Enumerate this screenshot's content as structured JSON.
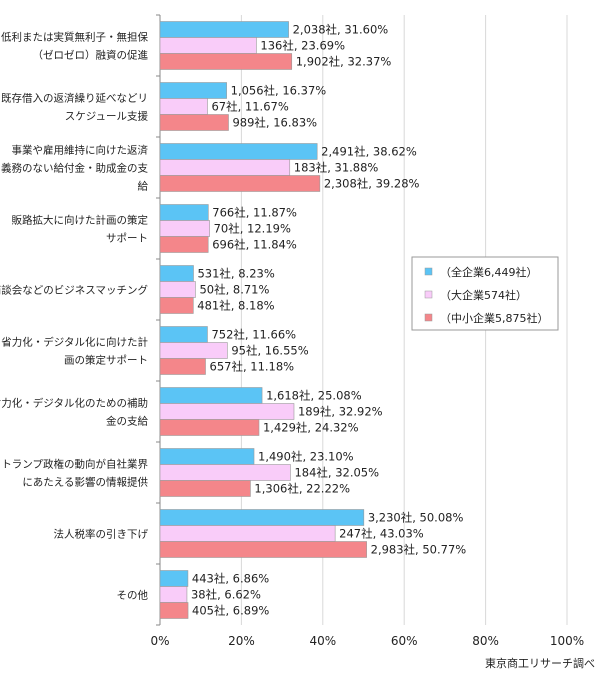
{
  "chart_data": {
    "type": "bar",
    "orientation": "horizontal",
    "categories": [
      [
        "低利または実質無利子・無担保",
        "（ゼロゼロ）融資の促進"
      ],
      [
        "既存借入の返済繰り延べなどリ",
        "スケジュール支援"
      ],
      [
        "事業や雇用維持に向けた返済",
        "義務のない給付金・助成金の支",
        "給"
      ],
      [
        "販路拡大に向けた計画の策定",
        "サポート"
      ],
      [
        "商談会などのビジネスマッチング"
      ],
      [
        "省力化・デジタル化に向けた計",
        "画の策定サポート"
      ],
      [
        "省力化・デジタル化のための補助",
        "金の支給"
      ],
      [
        "トランプ政権の動向が自社業界",
        "にあたえる影響の情報提供"
      ],
      [
        "法人税率の引き下げ"
      ],
      [
        "その他"
      ]
    ],
    "series": [
      {
        "name": "（全企業6,449社）",
        "color": "#5bc4f5",
        "values": [
          31.6,
          16.37,
          38.62,
          11.87,
          8.23,
          11.66,
          25.08,
          23.1,
          50.08,
          6.86
        ],
        "labels": [
          "2,038社, 31.60%",
          "1,056社, 16.37%",
          "2,491社, 38.62%",
          "766社, 11.87%",
          "531社, 8.23%",
          "752社, 11.66%",
          "1,618社, 25.08%",
          "1,490社, 23.10%",
          "3,230社, 50.08%",
          "443社, 6.86%"
        ]
      },
      {
        "name": "（大企業574社）",
        "color": "#f9ccf9",
        "values": [
          23.69,
          11.67,
          31.88,
          12.19,
          8.71,
          16.55,
          32.92,
          32.05,
          43.03,
          6.62
        ],
        "labels": [
          "136社, 23.69%",
          "67社, 11.67%",
          "183社, 31.88%",
          "70社, 12.19%",
          "50社, 8.71%",
          "95社, 16.55%",
          "189社, 32.92%",
          "184社, 32.05%",
          "247社, 43.03%",
          "38社, 6.62%"
        ]
      },
      {
        "name": "（中小企業5,875社）",
        "color": "#f4868a",
        "values": [
          32.37,
          16.83,
          39.28,
          11.84,
          8.18,
          11.18,
          24.32,
          22.22,
          50.77,
          6.89
        ],
        "labels": [
          "1,902社, 32.37%",
          "989社, 16.83%",
          "2,308社, 39.28%",
          "696社, 11.84%",
          "481社, 8.18%",
          "657社, 11.18%",
          "1,429社, 24.32%",
          "1,306社, 22.22%",
          "2,983社, 50.77%",
          "405社, 6.89%"
        ]
      }
    ],
    "xlim": [
      0,
      100
    ],
    "xticks": [
      "0%",
      "20%",
      "40%",
      "60%",
      "80%",
      "100%"
    ],
    "xtick_values": [
      0,
      20,
      40,
      60,
      80,
      100
    ],
    "grid": true,
    "legend": "right-middle",
    "source": "東京商工リサーチ調べ"
  }
}
